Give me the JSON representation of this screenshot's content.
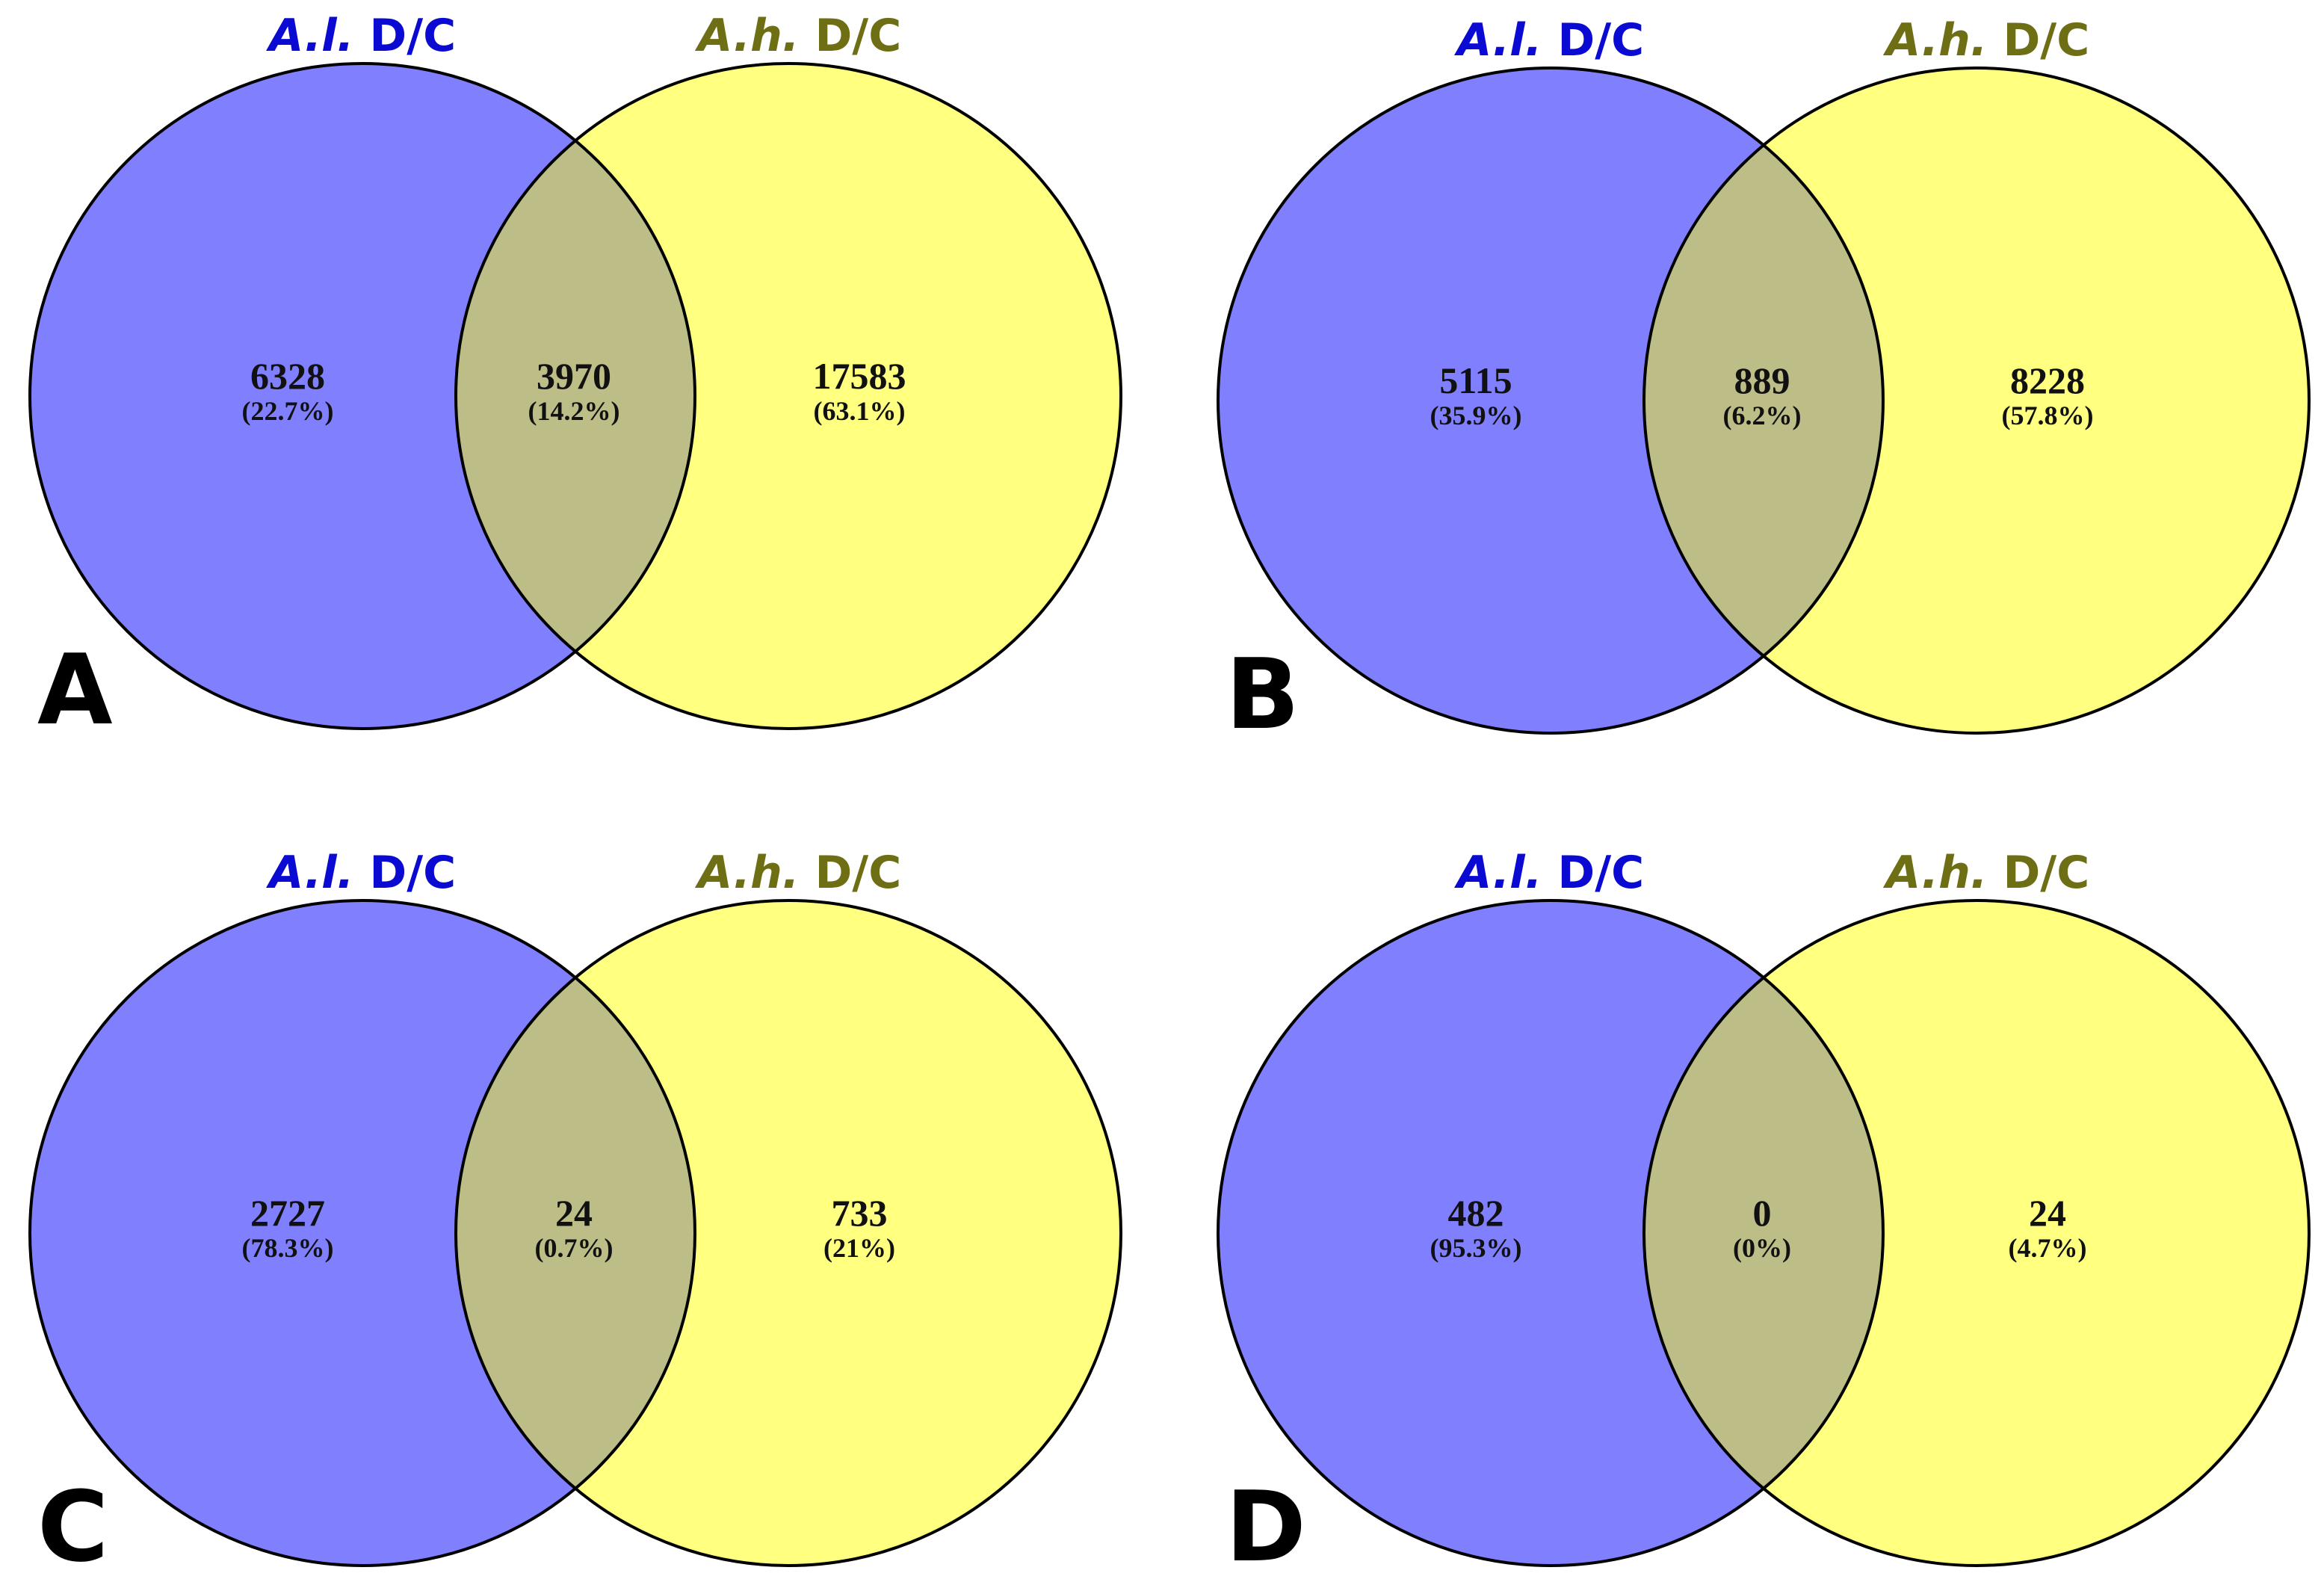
{
  "figure": {
    "set_a": {
      "abbrev": "A.l.",
      "suffix": "D/C",
      "color": "#8080ff"
    },
    "set_b": {
      "abbrev": "A.h.",
      "suffix": "D/C",
      "color": "#ffff80"
    },
    "overlap_color": "#bdbd87",
    "outline_color": "#000000",
    "label_a_color": "#0a0ad2",
    "label_b_color": "#6e6e14"
  },
  "chart_data": [
    {
      "type": "venn",
      "panel": "A",
      "sets": [
        "A.l. D/C",
        "A.h. D/C"
      ],
      "regions": [
        {
          "region": "A.l. only",
          "count": "6328",
          "percent": "(22.7%)"
        },
        {
          "region": "both",
          "count": "3970",
          "percent": "(14.2%)"
        },
        {
          "region": "A.h. only",
          "count": "17583",
          "percent": "(63.1%)"
        }
      ]
    },
    {
      "type": "venn",
      "panel": "B",
      "sets": [
        "A.l. D/C",
        "A.h. D/C"
      ],
      "regions": [
        {
          "region": "A.l. only",
          "count": "5115",
          "percent": "(35.9%)"
        },
        {
          "region": "both",
          "count": "889",
          "percent": "(6.2%)"
        },
        {
          "region": "A.h. only",
          "count": "8228",
          "percent": "(57.8%)"
        }
      ]
    },
    {
      "type": "venn",
      "panel": "C",
      "sets": [
        "A.l. D/C",
        "A.h. D/C"
      ],
      "regions": [
        {
          "region": "A.l. only",
          "count": "2727",
          "percent": "(78.3%)"
        },
        {
          "region": "both",
          "count": "24",
          "percent": "(0.7%)"
        },
        {
          "region": "A.h. only",
          "count": "733",
          "percent": "(21%)"
        }
      ]
    },
    {
      "type": "venn",
      "panel": "D",
      "sets": [
        "A.l. D/C",
        "A.h. D/C"
      ],
      "regions": [
        {
          "region": "A.l. only",
          "count": "482",
          "percent": "(95.3%)"
        },
        {
          "region": "both",
          "count": "0",
          "percent": "(0%)"
        },
        {
          "region": "A.h. only",
          "count": "24",
          "percent": "(4.7%)"
        }
      ]
    }
  ]
}
